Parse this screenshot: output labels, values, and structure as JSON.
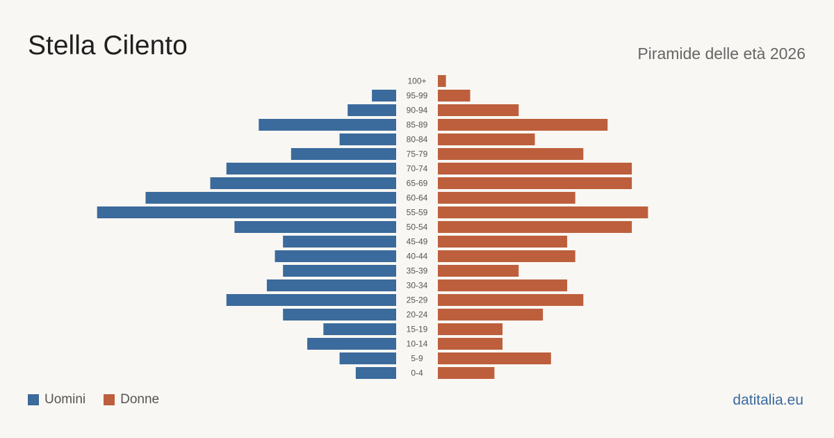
{
  "header": {
    "title": "Stella Cilento",
    "subtitle": "Piramide delle età 2026"
  },
  "legend": {
    "men_label": "Uomini",
    "women_label": "Donne"
  },
  "source": "datitalia.eu",
  "colors": {
    "men": "#3b6a9c",
    "women": "#bd5f3c",
    "background": "#f9f7f3"
  },
  "chart_data": {
    "type": "bar",
    "orientation": "horizontal-pyramid",
    "categories": [
      "100+",
      "95-99",
      "90-94",
      "85-89",
      "80-84",
      "75-79",
      "70-74",
      "65-69",
      "60-64",
      "55-59",
      "50-54",
      "45-49",
      "40-44",
      "35-39",
      "30-34",
      "25-29",
      "20-24",
      "15-19",
      "10-14",
      "5-9",
      "0-4"
    ],
    "series": [
      {
        "name": "Uomini",
        "values": [
          0,
          3,
          6,
          17,
          7,
          13,
          21,
          23,
          31,
          37,
          20,
          14,
          15,
          14,
          16,
          21,
          14,
          9,
          11,
          7,
          5
        ]
      },
      {
        "name": "Donne",
        "values": [
          1,
          4,
          10,
          21,
          12,
          18,
          24,
          24,
          17,
          26,
          24,
          16,
          17,
          10,
          16,
          18,
          13,
          8,
          8,
          14,
          7
        ]
      }
    ],
    "legend_position": "bottom-left",
    "grid": false
  }
}
